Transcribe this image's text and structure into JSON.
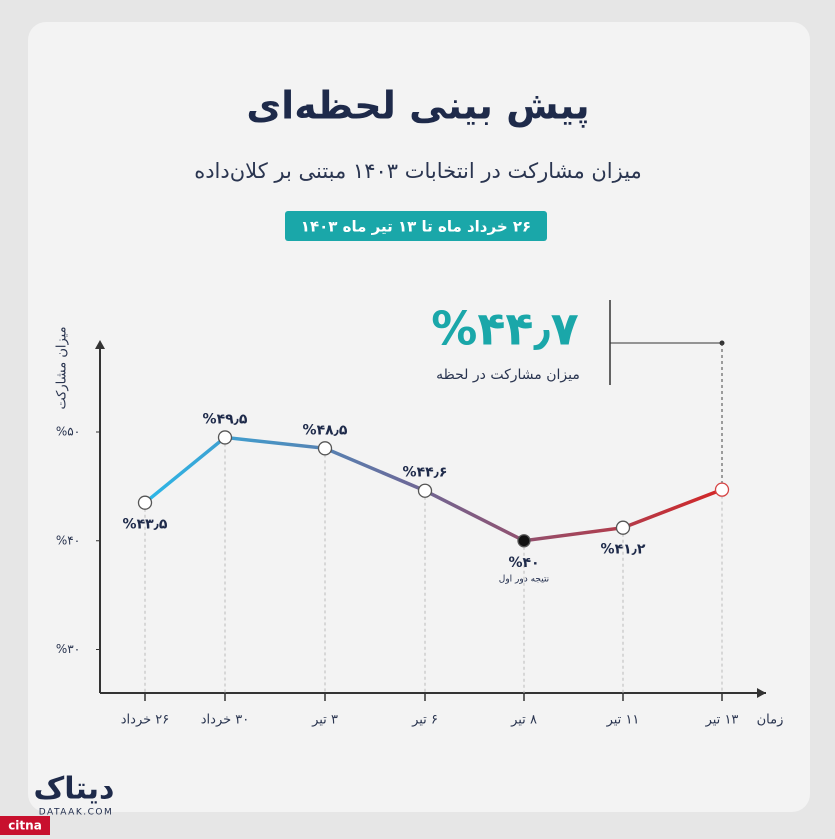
{
  "chart_data": {
    "type": "line",
    "title": "پیش بینی لحظه‌ای",
    "subtitle": "میزان مشارکت در انتخابات ۱۴۰۳ مبتنی بر کلان‌داده",
    "date_range": "۲۶ خرداد ماه تا ۱۳ تیر ماه ۱۴۰۳",
    "callout_caption": "میزان مشارکت در لحظه",
    "y_label": "میزان مشارکت",
    "x_label": "زمان",
    "annotation": "نتیجه دور اول",
    "categories": [
      "۲۶ خرداد",
      "۳۰ خرداد",
      "۳ تیر",
      "۶ تیر",
      "۸ تیر",
      "۱۱ تیر",
      "۱۳ تیر"
    ],
    "values": [
      43.5,
      49.5,
      48.5,
      44.6,
      40,
      41.2,
      44.7
    ],
    "value_labels": [
      "%۴۳٫۵",
      "%۴۹٫۵",
      "%۴۸٫۵",
      "%۴۴٫۶",
      "%۴۰",
      "%۴۱٫۲",
      "%۴۴٫۷"
    ],
    "colors": [
      "#2bb7e8",
      "#d32626"
    ],
    "ylim": [
      26,
      58
    ],
    "yticks": [
      {
        "value": 30,
        "label": "%۳۰"
      },
      {
        "value": 40,
        "label": "%۴۰"
      },
      {
        "value": 50,
        "label": "%۵۰"
      }
    ],
    "logo": "دیتاک",
    "logo_url": "DATAAK.COM",
    "watermark": "citna"
  }
}
